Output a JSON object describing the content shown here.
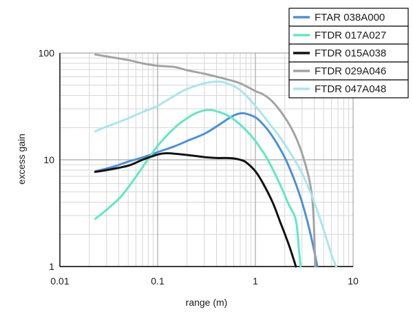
{
  "chart_data": {
    "type": "line",
    "title": "",
    "xlabel": "range (m)",
    "ylabel": "excess gain",
    "x_scale": "log",
    "y_scale": "log",
    "xlim": [
      0.01,
      10
    ],
    "ylim": [
      1,
      100
    ],
    "x_ticks": [
      {
        "v": 0.01,
        "label": "0.01"
      },
      {
        "v": 0.1,
        "label": "0.1"
      },
      {
        "v": 1,
        "label": "1"
      },
      {
        "v": 10,
        "label": "10"
      }
    ],
    "y_ticks": [
      {
        "v": 1,
        "label": "1"
      },
      {
        "v": 10,
        "label": "10"
      },
      {
        "v": 100,
        "label": "100"
      }
    ],
    "grid": true,
    "legend_position": "top-right",
    "series": [
      {
        "name": "FTAR 038A000",
        "color": "#4a90d9",
        "x": [
          0.023,
          0.035,
          0.05,
          0.07,
          0.1,
          0.15,
          0.2,
          0.3,
          0.4,
          0.5,
          0.6,
          0.7,
          0.8,
          1.0,
          1.2,
          1.5,
          2.0,
          2.5,
          3.0,
          3.5,
          4.0,
          4.3
        ],
        "y": [
          7.8,
          8.6,
          9.6,
          10.5,
          11.8,
          13.4,
          15.0,
          17.5,
          20.5,
          23.5,
          26.0,
          27.2,
          27.0,
          25.0,
          21.5,
          16.5,
          10.5,
          6.5,
          4.0,
          2.4,
          1.4,
          1.0
        ]
      },
      {
        "name": "FTDR 017A027",
        "color": "#5ee8c6",
        "x": [
          0.023,
          0.03,
          0.04,
          0.05,
          0.07,
          0.1,
          0.15,
          0.2,
          0.25,
          0.3,
          0.35,
          0.4,
          0.5,
          0.6,
          0.8,
          1.0,
          1.3,
          1.7,
          2.2,
          2.6,
          2.8,
          2.9
        ],
        "y": [
          2.8,
          3.4,
          4.3,
          5.5,
          8.5,
          13.5,
          20.0,
          24.5,
          27.5,
          29.0,
          29.3,
          28.5,
          26.5,
          24.0,
          19.0,
          15.0,
          10.5,
          6.5,
          3.8,
          2.7,
          1.4,
          1.0
        ]
      },
      {
        "name": "FTDR 015A038",
        "color": "#111111",
        "x": [
          0.023,
          0.03,
          0.05,
          0.07,
          0.1,
          0.12,
          0.15,
          0.2,
          0.3,
          0.4,
          0.5,
          0.6,
          0.7,
          0.8,
          1.0,
          1.2,
          1.5,
          1.8,
          2.2,
          2.6
        ],
        "y": [
          7.7,
          8.0,
          8.8,
          10.0,
          11.2,
          11.5,
          11.4,
          11.1,
          10.6,
          10.4,
          10.4,
          10.3,
          10.0,
          9.5,
          7.8,
          6.0,
          4.0,
          2.6,
          1.6,
          1.0
        ]
      },
      {
        "name": "FTDR 029A046",
        "color": "#a3a3a3",
        "x": [
          0.023,
          0.03,
          0.05,
          0.07,
          0.1,
          0.15,
          0.2,
          0.3,
          0.5,
          0.7,
          1.0,
          1.2,
          1.5,
          2.0,
          2.5,
          3.0,
          3.5,
          3.8,
          3.95,
          4.1
        ],
        "y": [
          97,
          93,
          86,
          80,
          76,
          74,
          69,
          64,
          57,
          52,
          44,
          41,
          35,
          25,
          17.5,
          11.5,
          7.0,
          4.5,
          2.8,
          1.0
        ]
      },
      {
        "name": "FTDR 047A048",
        "color": "#a8e6ed",
        "x": [
          0.023,
          0.03,
          0.04,
          0.05,
          0.07,
          0.1,
          0.15,
          0.2,
          0.3,
          0.4,
          0.5,
          0.7,
          1.0,
          1.5,
          2.0,
          3.0,
          4.0,
          5.0,
          6.0,
          6.7
        ],
        "y": [
          18.5,
          20.5,
          22.5,
          24.5,
          28.0,
          32.0,
          40.0,
          46.0,
          52.0,
          54.0,
          52.5,
          45.0,
          32.0,
          20.0,
          14.0,
          7.5,
          4.0,
          2.2,
          1.3,
          1.0
        ]
      }
    ]
  }
}
